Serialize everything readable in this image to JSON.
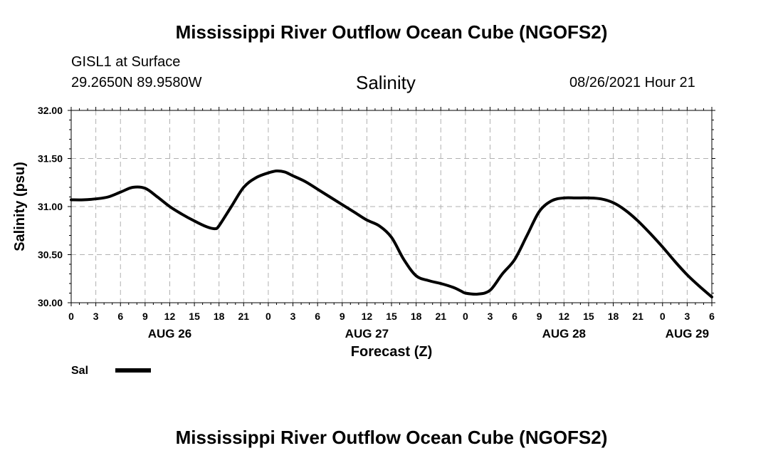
{
  "header": {
    "title": "Mississippi River Outflow Ocean Cube (NGOFS2)",
    "station": "GISL1 at Surface",
    "coords": "29.2650N  89.9580W",
    "variable": "Salinity",
    "timestamp": "08/26/2021 Hour 21"
  },
  "footer": {
    "title": "Mississippi River Outflow Ocean Cube (NGOFS2)"
  },
  "chart_data": {
    "type": "line",
    "ylabel": "Salinity (psu)",
    "xlabel": "Forecast (Z)",
    "ylim": [
      30.0,
      32.0
    ],
    "y_ticks": [
      "30.00",
      "30.50",
      "31.00",
      "31.50",
      "32.00"
    ],
    "x_range_hours": [
      0,
      78
    ],
    "x_tick_labels": [
      "0",
      "3",
      "6",
      "9",
      "12",
      "15",
      "18",
      "21",
      "0",
      "3",
      "6",
      "9",
      "12",
      "15",
      "18",
      "21",
      "0",
      "3",
      "6",
      "9",
      "12",
      "15",
      "18",
      "21",
      "0",
      "3",
      "6"
    ],
    "day_labels": [
      {
        "label": "AUG 26",
        "hour": 12
      },
      {
        "label": "AUG 27",
        "hour": 36
      },
      {
        "label": "AUG 28",
        "hour": 60
      },
      {
        "label": "AUG 29",
        "hour": 75
      }
    ],
    "grid": true,
    "legend": [
      {
        "name": "Sal",
        "color": "#000000"
      }
    ],
    "series": [
      {
        "name": "Sal",
        "x_hours": [
          0,
          1.5,
          3,
          4.5,
          6,
          7.5,
          9,
          10.5,
          12,
          13.5,
          15,
          16.5,
          17.5,
          18,
          19.5,
          21,
          22.5,
          24,
          25,
          26,
          27,
          28.5,
          30,
          31.5,
          33,
          34.5,
          36,
          37.5,
          39,
          40.5,
          42,
          43.5,
          45,
          46.5,
          47.5,
          48,
          49.5,
          51,
          52.5,
          54,
          55.5,
          57,
          58.5,
          60,
          61.5,
          63,
          64.5,
          66,
          67.5,
          69,
          70.5,
          72,
          73.5,
          75,
          76.5,
          78
        ],
        "values": [
          31.07,
          31.07,
          31.08,
          31.1,
          31.15,
          31.2,
          31.19,
          31.1,
          31.0,
          30.92,
          30.85,
          30.79,
          30.77,
          30.8,
          31.0,
          31.2,
          31.3,
          31.35,
          31.37,
          31.36,
          31.32,
          31.26,
          31.18,
          31.1,
          31.02,
          30.94,
          30.86,
          30.8,
          30.68,
          30.45,
          30.28,
          30.23,
          30.2,
          30.16,
          30.12,
          30.1,
          30.09,
          30.13,
          30.3,
          30.45,
          30.7,
          30.95,
          31.06,
          31.09,
          31.09,
          31.09,
          31.08,
          31.04,
          30.96,
          30.85,
          30.72,
          30.58,
          30.43,
          30.29,
          30.17,
          30.06
        ]
      }
    ]
  }
}
